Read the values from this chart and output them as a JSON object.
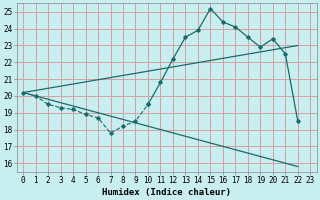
{
  "background_color": "#c8eef0",
  "grid_color": "#d4a0a0",
  "line_color": "#1a6b6b",
  "xlabel": "Humidex (Indice chaleur)",
  "xlim": [
    -0.5,
    23.5
  ],
  "ylim": [
    15.5,
    25.5
  ],
  "yticks": [
    16,
    17,
    18,
    19,
    20,
    21,
    22,
    23,
    24,
    25
  ],
  "xticks": [
    0,
    1,
    2,
    3,
    4,
    5,
    6,
    7,
    8,
    9,
    10,
    11,
    12,
    13,
    14,
    15,
    16,
    17,
    18,
    19,
    20,
    21,
    22,
    23
  ],
  "curve1_x": [
    0,
    1,
    2,
    3,
    4,
    5,
    6,
    7,
    8,
    9,
    10,
    11,
    12,
    13,
    14,
    15,
    16,
    17,
    18,
    19,
    20,
    21,
    22
  ],
  "curve1_y": [
    20.2,
    20.0,
    19.5,
    19.3,
    19.2,
    18.9,
    18.7,
    17.8,
    18.2,
    18.5,
    19.5,
    20.8,
    22.2,
    23.5,
    23.9,
    25.2,
    24.4,
    24.1,
    23.5,
    22.9,
    23.4,
    22.5,
    18.5
  ],
  "curve2_x": [
    0,
    22
  ],
  "curve2_y": [
    20.2,
    23.0
  ],
  "curve3_x": [
    0,
    22
  ],
  "curve3_y": [
    20.2,
    15.8
  ],
  "curve4_x": [
    0,
    1,
    2,
    3,
    4,
    5,
    6,
    7,
    8,
    9,
    10
  ],
  "curve4_y": [
    20.2,
    20.0,
    19.5,
    19.3,
    19.2,
    18.9,
    18.7,
    17.8,
    18.2,
    18.5,
    19.5
  ],
  "font_size_tick": 5.5,
  "font_size_xlabel": 6.5
}
